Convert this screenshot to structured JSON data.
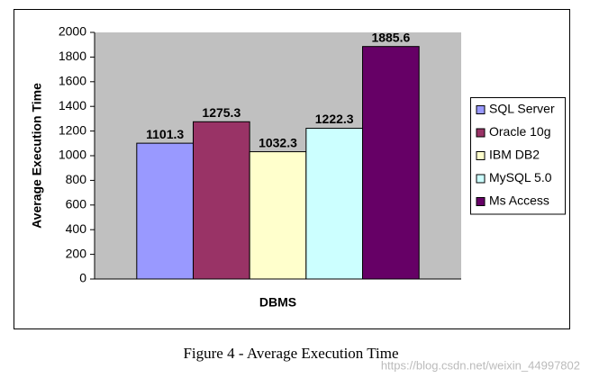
{
  "chart_data": {
    "type": "bar",
    "ylabel": "Average Execution Time",
    "categories": [
      "DBMS"
    ],
    "series": [
      {
        "name": "SQL Server",
        "color": "#9999ff",
        "values": [
          1101.3
        ]
      },
      {
        "name": "Oracle 10g",
        "color": "#993366",
        "values": [
          1275.3
        ]
      },
      {
        "name": "IBM DB2",
        "color": "#ffffcc",
        "values": [
          1032.3
        ]
      },
      {
        "name": "MySQL 5.0",
        "color": "#ccffff",
        "values": [
          1222.3
        ]
      },
      {
        "name": "Ms Access",
        "color": "#660066",
        "values": [
          1885.6
        ]
      }
    ],
    "ylim": [
      0,
      2000
    ],
    "yticks": [
      0,
      200,
      400,
      600,
      800,
      1000,
      1200,
      1400,
      1600,
      1800,
      2000
    ],
    "plot_background": "#c0c0c0",
    "legend": "right",
    "data_labels": true
  },
  "caption": "Figure 4 - Average Execution Time",
  "watermark": "https://blog.csdn.net/weixin_44997802"
}
